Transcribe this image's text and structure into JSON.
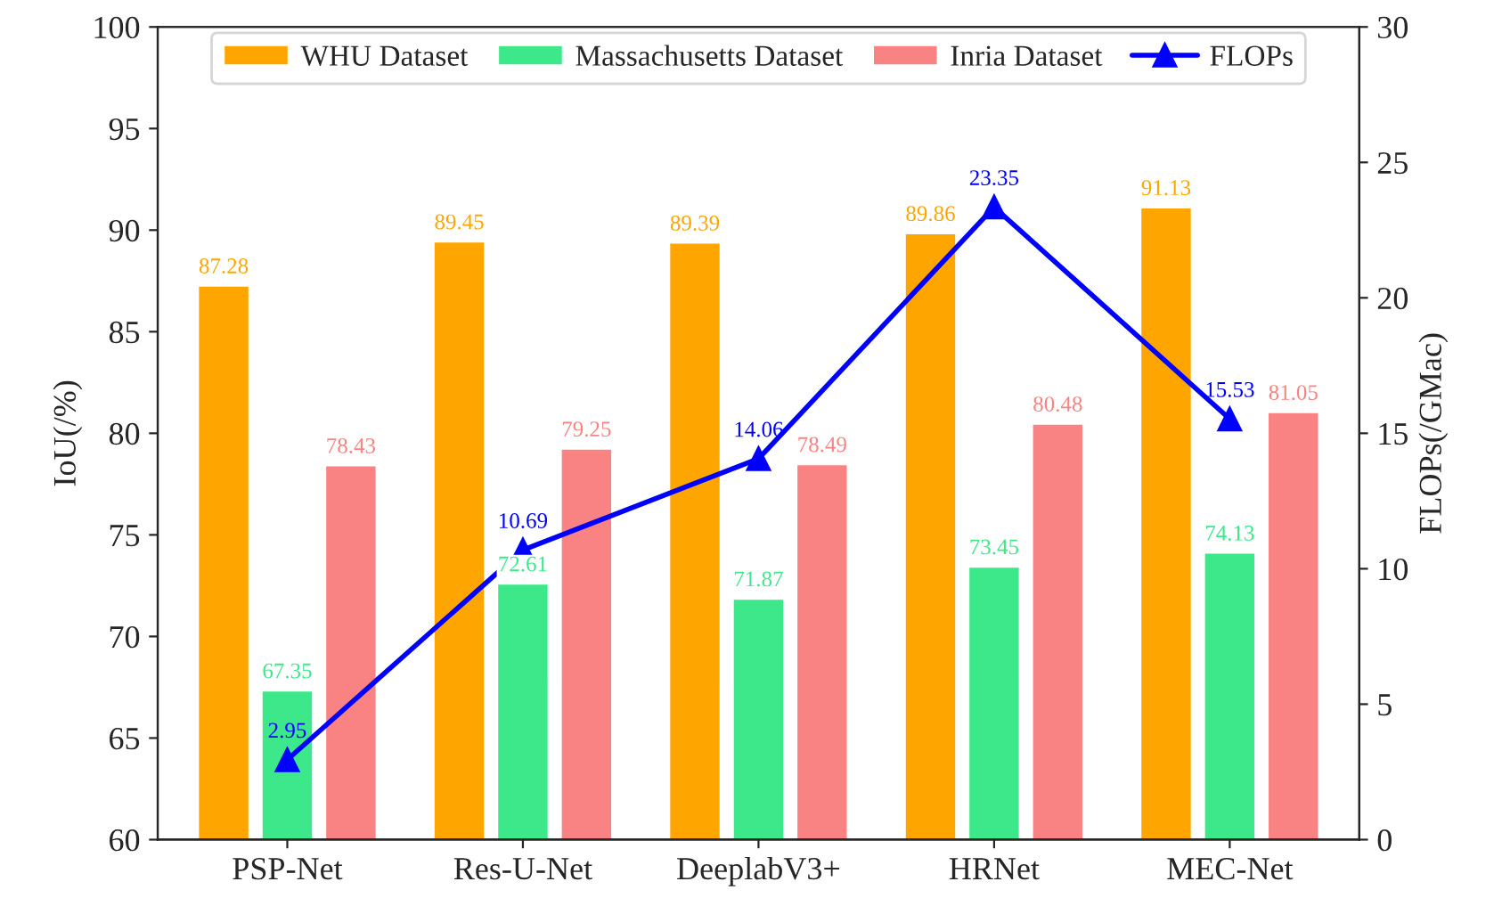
{
  "chart_data": {
    "type": "bar",
    "categories": [
      "PSP-Net",
      "Res-U-Net",
      "DeeplabV3+",
      "HRNet",
      "MEC-Net"
    ],
    "ylabel": "IoU(/%)",
    "y2label": "FLOPs(/GMac)",
    "ylim": [
      60,
      100
    ],
    "yticks": [
      60,
      65,
      70,
      75,
      80,
      85,
      90,
      95,
      100
    ],
    "y2lim": [
      0,
      30
    ],
    "y2ticks": [
      0,
      5,
      10,
      15,
      20,
      25,
      30
    ],
    "series": [
      {
        "name": "WHU Dataset",
        "color": "#ffa500",
        "values": [
          87.28,
          89.45,
          89.39,
          89.86,
          91.13
        ]
      },
      {
        "name": "Massachusetts Dataset",
        "color": "#3ce88a",
        "values": [
          67.35,
          72.61,
          71.87,
          73.45,
          74.13
        ]
      },
      {
        "name": "Inria Dataset",
        "color": "#f98282",
        "values": [
          78.43,
          79.25,
          78.49,
          80.48,
          81.05
        ]
      },
      {
        "name": "FLOPs",
        "type": "line",
        "axis": "y2",
        "color": "#0000ff",
        "marker": "triangle",
        "values": [
          2.95,
          10.69,
          14.06,
          23.35,
          15.53
        ]
      }
    ],
    "data_labels": true,
    "legend": "top",
    "grid": false
  }
}
